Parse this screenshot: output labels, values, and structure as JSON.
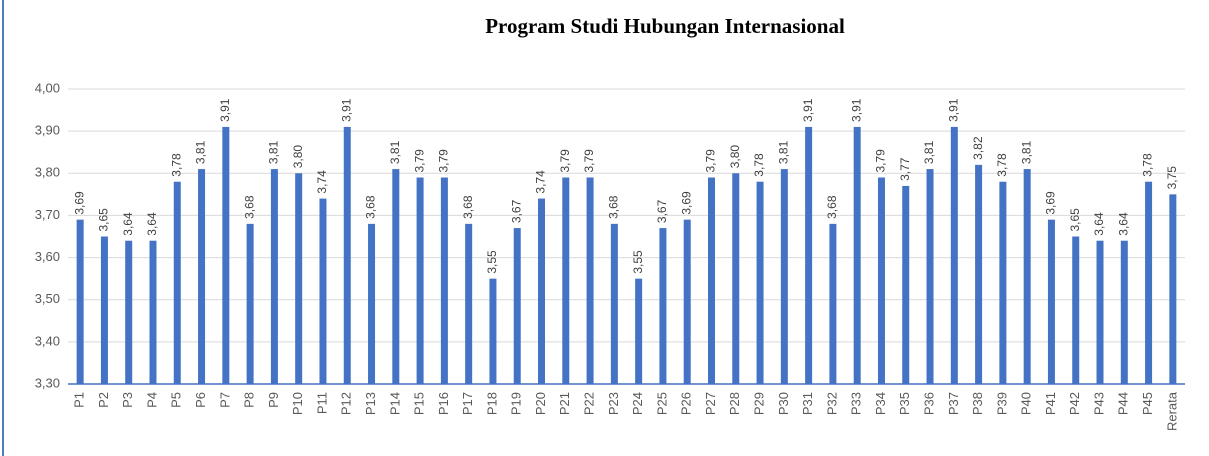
{
  "chart_data": {
    "type": "bar",
    "title": "Program Studi  Hubungan Internasional",
    "categories": [
      "P1",
      "P2",
      "P3",
      "P4",
      "P5",
      "P6",
      "P7",
      "P8",
      "P9",
      "P10",
      "P11",
      "P12",
      "P13",
      "P14",
      "P15",
      "P16",
      "P17",
      "P18",
      "P19",
      "P20",
      "P21",
      "P22",
      "P23",
      "P24",
      "P25",
      "P26",
      "P27",
      "P28",
      "P29",
      "P30",
      "P31",
      "P32",
      "P33",
      "P34",
      "P35",
      "P36",
      "P37",
      "P38",
      "P39",
      "P40",
      "P41",
      "P42",
      "P43",
      "P44",
      "P45",
      "Rerata"
    ],
    "values": [
      3.69,
      3.65,
      3.64,
      3.64,
      3.78,
      3.81,
      3.91,
      3.68,
      3.81,
      3.8,
      3.74,
      3.91,
      3.68,
      3.81,
      3.79,
      3.79,
      3.68,
      3.55,
      3.67,
      3.74,
      3.79,
      3.79,
      3.68,
      3.55,
      3.67,
      3.69,
      3.79,
      3.8,
      3.78,
      3.81,
      3.91,
      3.68,
      3.91,
      3.79,
      3.77,
      3.81,
      3.91,
      3.82,
      3.78,
      3.81,
      3.69,
      3.65,
      3.64,
      3.64,
      3.78,
      3.75
    ],
    "value_labels": [
      "3,69",
      "3,65",
      "3,64",
      "3,64",
      "3,78",
      "3,81",
      "3,91",
      "3,68",
      "3,81",
      "3,80",
      "3,74",
      "3,91",
      "3,68",
      "3,81",
      "3,79",
      "3,79",
      "3,68",
      "3,55",
      "3,67",
      "3,74",
      "3,79",
      "3,79",
      "3,68",
      "3,55",
      "3,67",
      "3,69",
      "3,79",
      "3,80",
      "3,78",
      "3,81",
      "3,91",
      "3,68",
      "3,91",
      "3,79",
      "3,77",
      "3,81",
      "3,91",
      "3,82",
      "3,78",
      "3,81",
      "3,69",
      "3,65",
      "3,64",
      "3,64",
      "3,78",
      "3,75"
    ],
    "color": "#4472c4",
    "ylim": [
      3.3,
      4.0
    ],
    "yticks": [
      {
        "value": 3.3,
        "label": "3,30"
      },
      {
        "value": 3.4,
        "label": "3,40"
      },
      {
        "value": 3.5,
        "label": "3,50"
      },
      {
        "value": 3.6,
        "label": "3,60"
      },
      {
        "value": 3.7,
        "label": "3,70"
      },
      {
        "value": 3.8,
        "label": "3,80"
      },
      {
        "value": 3.9,
        "label": "3,90"
      },
      {
        "value": 4.0,
        "label": "4,00"
      }
    ],
    "grid": true
  }
}
